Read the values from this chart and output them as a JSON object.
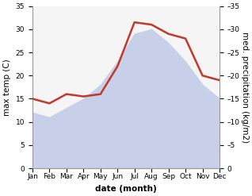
{
  "months": [
    "Jan",
    "Feb",
    "Mar",
    "Apr",
    "May",
    "Jun",
    "Jul",
    "Aug",
    "Sep",
    "Oct",
    "Nov",
    "Dec"
  ],
  "max_temp": [
    12,
    11,
    13,
    15,
    18,
    23,
    29,
    30,
    27,
    23,
    18,
    15
  ],
  "precipitation": [
    15,
    14,
    16,
    15.5,
    16,
    22,
    31.5,
    31,
    29,
    28,
    20,
    19
  ],
  "temp_fill_color": "#c8cfe8",
  "precip_color": "#c0392b",
  "left_ylabel": "max temp (C)",
  "right_ylabel": "med. precipitation (kg/m2)",
  "xlabel": "date (month)",
  "ylim_left": [
    0,
    35
  ],
  "ylim_right": [
    0,
    35
  ],
  "yticks": [
    0,
    5,
    10,
    15,
    20,
    25,
    30,
    35
  ],
  "background_color": "#ffffff",
  "plot_bg_color": "#f5f5f5",
  "label_fontsize": 7.5,
  "tick_fontsize": 6.5
}
